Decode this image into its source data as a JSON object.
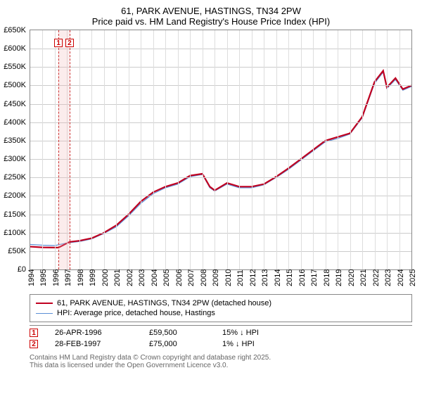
{
  "title": {
    "line1": "61, PARK AVENUE, HASTINGS, TN34 2PW",
    "line2": "Price paid vs. HM Land Registry's House Price Index (HPI)"
  },
  "chart": {
    "type": "line",
    "ylim": [
      0,
      650000
    ],
    "ytick_step": 50000,
    "ytick_labels": [
      "£0",
      "£50K",
      "£100K",
      "£150K",
      "£200K",
      "£250K",
      "£300K",
      "£350K",
      "£400K",
      "£450K",
      "£500K",
      "£550K",
      "£600K",
      "£650K"
    ],
    "xlim": [
      1994,
      2025
    ],
    "xtick_step": 1,
    "xtick_labels": [
      "1994",
      "1995",
      "1996",
      "1997",
      "1998",
      "1999",
      "2000",
      "2001",
      "2002",
      "2003",
      "2004",
      "2005",
      "2006",
      "2007",
      "2008",
      "2009",
      "2010",
      "2011",
      "2012",
      "2013",
      "2014",
      "2015",
      "2016",
      "2017",
      "2018",
      "2019",
      "2020",
      "2021",
      "2022",
      "2023",
      "2024",
      "2025"
    ],
    "background_color": "#ffffff",
    "grid_color": "#cccccc",
    "border_color": "#888888",
    "series": [
      {
        "name": "property_price",
        "label": "61, PARK AVENUE, HASTINGS, TN34 2PW (detached house)",
        "color": "#c00020",
        "width": 2.2,
        "points": [
          [
            1994,
            62000
          ],
          [
            1995,
            60000
          ],
          [
            1996,
            59500
          ],
          [
            1996.3,
            59500
          ],
          [
            1997.2,
            75000
          ],
          [
            1998,
            78000
          ],
          [
            1999,
            85000
          ],
          [
            2000,
            100000
          ],
          [
            2001,
            120000
          ],
          [
            2002,
            150000
          ],
          [
            2003,
            185000
          ],
          [
            2004,
            210000
          ],
          [
            2005,
            225000
          ],
          [
            2006,
            235000
          ],
          [
            2007,
            255000
          ],
          [
            2008,
            260000
          ],
          [
            2008.6,
            225000
          ],
          [
            2009,
            215000
          ],
          [
            2010,
            235000
          ],
          [
            2011,
            225000
          ],
          [
            2012,
            225000
          ],
          [
            2013,
            232000
          ],
          [
            2014,
            252000
          ],
          [
            2015,
            275000
          ],
          [
            2016,
            300000
          ],
          [
            2017,
            325000
          ],
          [
            2018,
            350000
          ],
          [
            2019,
            360000
          ],
          [
            2020,
            370000
          ],
          [
            2021,
            415000
          ],
          [
            2022,
            510000
          ],
          [
            2022.7,
            540000
          ],
          [
            2023,
            495000
          ],
          [
            2023.7,
            520000
          ],
          [
            2024.3,
            490000
          ],
          [
            2025,
            500000
          ]
        ]
      },
      {
        "name": "hpi",
        "label": "HPI: Average price, detached house, Hastings",
        "color": "#5b8fd6",
        "width": 1.2,
        "points": [
          [
            1994,
            68000
          ],
          [
            1995,
            66000
          ],
          [
            1996,
            65000
          ],
          [
            1997,
            72000
          ],
          [
            1998,
            76000
          ],
          [
            1999,
            83000
          ],
          [
            2000,
            98000
          ],
          [
            2001,
            116000
          ],
          [
            2002,
            146000
          ],
          [
            2003,
            180000
          ],
          [
            2004,
            206000
          ],
          [
            2005,
            222000
          ],
          [
            2006,
            232000
          ],
          [
            2007,
            252000
          ],
          [
            2008,
            258000
          ],
          [
            2008.6,
            222000
          ],
          [
            2009,
            213000
          ],
          [
            2010,
            232000
          ],
          [
            2011,
            222000
          ],
          [
            2012,
            222000
          ],
          [
            2013,
            230000
          ],
          [
            2014,
            250000
          ],
          [
            2015,
            272000
          ],
          [
            2016,
            297000
          ],
          [
            2017,
            322000
          ],
          [
            2018,
            347000
          ],
          [
            2019,
            356000
          ],
          [
            2020,
            368000
          ],
          [
            2021,
            412000
          ],
          [
            2022,
            506000
          ],
          [
            2022.7,
            536000
          ],
          [
            2023,
            492000
          ],
          [
            2023.7,
            516000
          ],
          [
            2024.3,
            487000
          ],
          [
            2025,
            497000
          ]
        ]
      }
    ],
    "sales": [
      {
        "n": "1",
        "year": 1996.3,
        "date": "26-APR-1996",
        "price": "£59,500",
        "hpi_diff": "15% ↓ HPI"
      },
      {
        "n": "2",
        "year": 1997.2,
        "date": "28-FEB-1997",
        "price": "£75,000",
        "hpi_diff": "1% ↓ HPI"
      }
    ]
  },
  "footer": {
    "line1": "Contains HM Land Registry data © Crown copyright and database right 2025.",
    "line2": "This data is licensed under the Open Government Licence v3.0."
  }
}
